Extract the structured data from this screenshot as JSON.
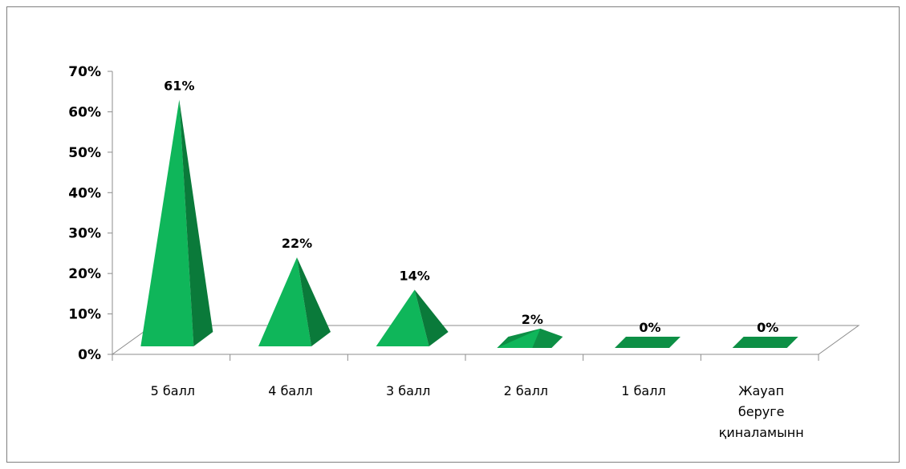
{
  "chart_data": {
    "type": "bar",
    "style": "3d-pyramid",
    "categories": [
      [
        "5 балл"
      ],
      [
        "4 балл"
      ],
      [
        "3 балл"
      ],
      [
        "2 балл"
      ],
      [
        "1 балл"
      ],
      [
        "Жауап",
        "беруге",
        "қиналамынн"
      ]
    ],
    "values": [
      61,
      22,
      14,
      2,
      0,
      0
    ],
    "data_labels": [
      "61%",
      "22%",
      "14%",
      "2%",
      "0%",
      "0%"
    ],
    "y_ticks": [
      "0%",
      "10%",
      "20%",
      "30%",
      "40%",
      "50%",
      "60%",
      "70%"
    ],
    "ylim": [
      0,
      70
    ],
    "grid": false,
    "legend": "none",
    "colors": {
      "front": "#0fb65a",
      "side": "#0a7a3a",
      "light": "#19c56a",
      "floor": "#ffffff",
      "floor_stroke": "#8c8c8c"
    }
  }
}
